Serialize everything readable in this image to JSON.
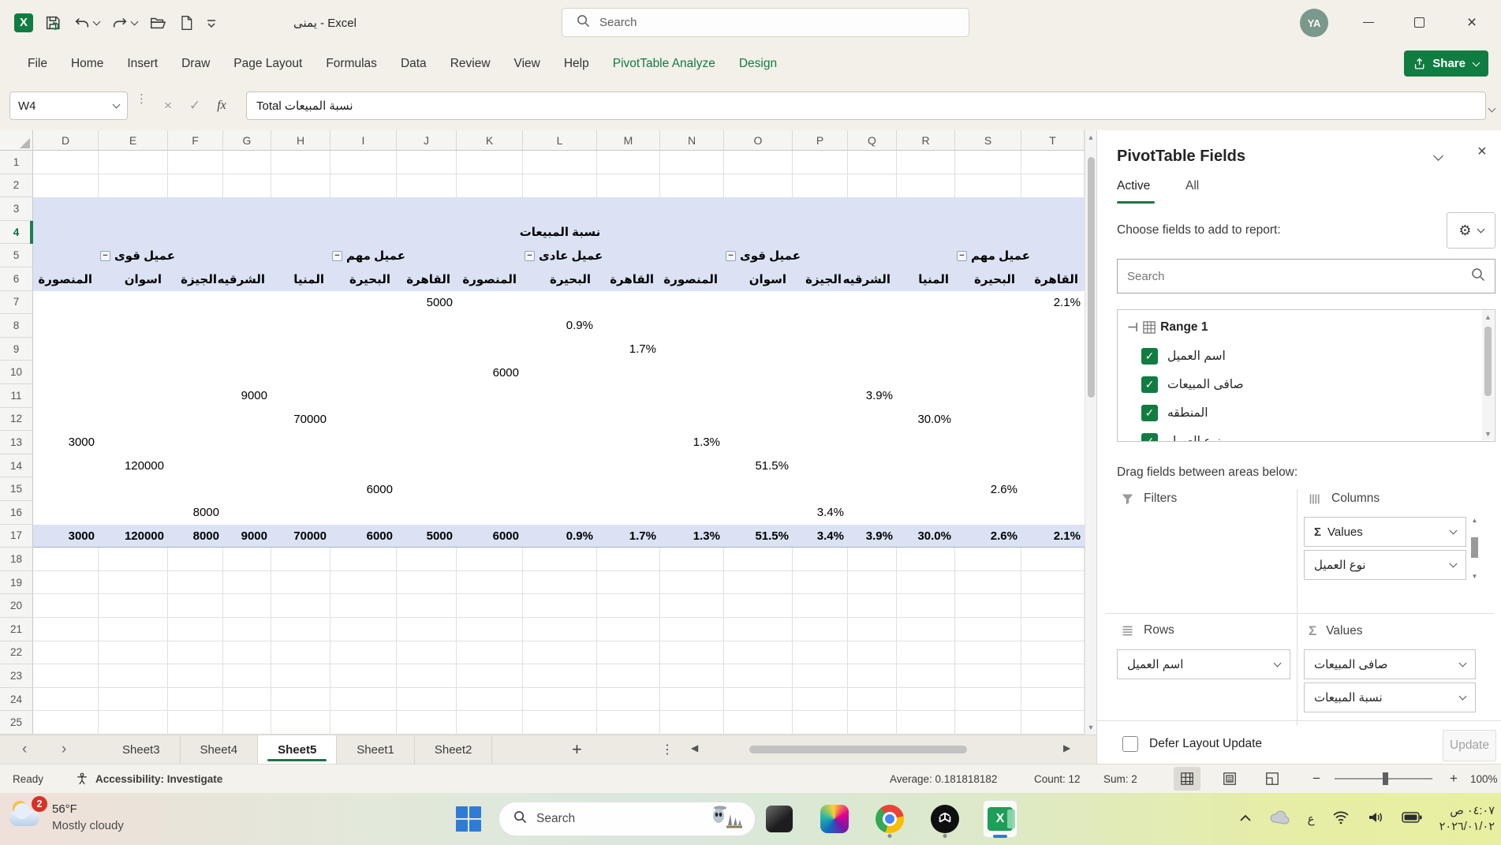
{
  "titlebar": {
    "app_title": "يمنى - Excel",
    "search_placeholder": "Search",
    "avatar_initials": "YA"
  },
  "ribbon": {
    "tabs": [
      {
        "label": "File",
        "accent": false
      },
      {
        "label": "Home",
        "accent": false
      },
      {
        "label": "Insert",
        "accent": false
      },
      {
        "label": "Draw",
        "accent": false
      },
      {
        "label": "Page Layout",
        "accent": false
      },
      {
        "label": "Formulas",
        "accent": false
      },
      {
        "label": "Data",
        "accent": false
      },
      {
        "label": "Review",
        "accent": false
      },
      {
        "label": "View",
        "accent": false
      },
      {
        "label": "Help",
        "accent": false
      },
      {
        "label": "PivotTable Analyze",
        "accent": true
      },
      {
        "label": "Design",
        "accent": true
      }
    ],
    "share_label": "Share"
  },
  "formula_bar": {
    "name_box": "W4",
    "formula": "Total نسبة المبيعات"
  },
  "grid": {
    "column_letters": [
      "D",
      "E",
      "F",
      "G",
      "H",
      "I",
      "J",
      "K",
      "L",
      "M",
      "N",
      "O",
      "P",
      "Q",
      "R",
      "S",
      "T"
    ],
    "visible_rows": 25,
    "selected_row": 4,
    "pivot": {
      "section_title": "نسبة المبيعات",
      "group_headers": [
        {
          "anchor_col": "E",
          "label": "عميل قوى"
        },
        {
          "anchor_col": "I",
          "label": "عميل مهم"
        },
        {
          "anchor_col": "L",
          "label": "عميل عادى"
        },
        {
          "anchor_col": "O",
          "label": "عميل قوى"
        },
        {
          "anchor_col": "S",
          "label": "عميل مهم"
        }
      ],
      "region_headers": {
        "D": "المنصورة",
        "E": "اسوان",
        "F": "الجيزة",
        "G": "الشرقيه",
        "H": "المنيا",
        "I": "البحيرة",
        "J": "القاهرة",
        "K": "المنصورة",
        "L": "البحيرة",
        "M": "القاهرة",
        "N": "المنصورة",
        "O": "اسوان",
        "P": "الجيزة",
        "Q": "الشرقيه",
        "R": "المنيا",
        "S": "البحيرة",
        "T": "القاهرة"
      },
      "data_cells": [
        {
          "row": 7,
          "col": "J",
          "value": "5000"
        },
        {
          "row": 7,
          "col": "T",
          "value": "2.1%"
        },
        {
          "row": 8,
          "col": "L",
          "value": "0.9%"
        },
        {
          "row": 9,
          "col": "M",
          "value": "1.7%"
        },
        {
          "row": 10,
          "col": "K",
          "value": "6000"
        },
        {
          "row": 11,
          "col": "G",
          "value": "9000"
        },
        {
          "row": 11,
          "col": "Q",
          "value": "3.9%"
        },
        {
          "row": 12,
          "col": "H",
          "value": "70000"
        },
        {
          "row": 12,
          "col": "R",
          "value": "30.0%"
        },
        {
          "row": 13,
          "col": "D",
          "value": "3000"
        },
        {
          "row": 13,
          "col": "N",
          "value": "1.3%"
        },
        {
          "row": 14,
          "col": "E",
          "value": "120000"
        },
        {
          "row": 14,
          "col": "O",
          "value": "51.5%"
        },
        {
          "row": 15,
          "col": "I",
          "value": "6000"
        },
        {
          "row": 15,
          "col": "S",
          "value": "2.6%"
        },
        {
          "row": 16,
          "col": "F",
          "value": "8000"
        },
        {
          "row": 16,
          "col": "P",
          "value": "3.4%"
        }
      ],
      "totals_row": 17,
      "totals": {
        "D": "3000",
        "E": "120000",
        "F": "8000",
        "G": "9000",
        "H": "70000",
        "I": "6000",
        "J": "5000",
        "K": "6000",
        "L": "0.9%",
        "M": "1.7%",
        "N": "1.3%",
        "O": "51.5%",
        "P": "3.4%",
        "Q": "3.9%",
        "R": "30.0%",
        "S": "2.6%",
        "T": "2.1%"
      }
    }
  },
  "sheet_bar": {
    "sheets": [
      "Sheet3",
      "Sheet4",
      "Sheet5",
      "Sheet1",
      "Sheet2"
    ],
    "active_sheet": "Sheet5",
    "add_label": "+",
    "more_label": "⋮"
  },
  "status_bar": {
    "mode": "Ready",
    "accessibility": "Accessibility: Investigate",
    "average_label": "Average: 0.181818182",
    "count_label": "Count: 12",
    "sum_label": "Sum: 2",
    "zoom_level": "100%"
  },
  "fields_panel": {
    "title": "PivotTable Fields",
    "tab_active": "Active",
    "tab_all": "All",
    "choose_label": "Choose fields to add to report:",
    "search_placeholder": "Search",
    "source_name": "Range 1",
    "fields": [
      {
        "label": "اسم العميل",
        "checked": true
      },
      {
        "label": "صافى المبيعات",
        "checked": true
      },
      {
        "label": "المنطقه",
        "checked": true
      },
      {
        "label": "نوع العميل",
        "checked": true
      }
    ],
    "drag_label": "Drag fields between areas below:",
    "areas": {
      "filters": {
        "label": "Filters",
        "items": []
      },
      "columns": {
        "label": "Columns",
        "items": [
          {
            "label": "Values",
            "sigma": true
          },
          {
            "label": "نوع العميل",
            "sigma": false
          }
        ]
      },
      "rows": {
        "label": "Rows",
        "items": [
          {
            "label": "اسم العميل",
            "sigma": false
          }
        ]
      },
      "values": {
        "label": "Values",
        "items": [
          {
            "label": "صافى المبيعات",
            "sigma": false
          },
          {
            "label": "نسبة المبيعات",
            "sigma": false
          }
        ]
      }
    },
    "defer_label": "Defer Layout Update",
    "update_label": "Update"
  },
  "taskbar": {
    "weather_temp": "56°F",
    "weather_desc": "Mostly cloudy",
    "weather_badge": "2",
    "search_placeholder": "Search",
    "language_indicator": "ع",
    "clock_time": "٠٤:٠٧ ص",
    "clock_date": "٢٠٢٦/٠١/٠٢"
  },
  "colors": {
    "excel_green": "#107C41",
    "pivot_fill": "#dbe2f4",
    "active_app_indicator": "#3b78d4"
  }
}
